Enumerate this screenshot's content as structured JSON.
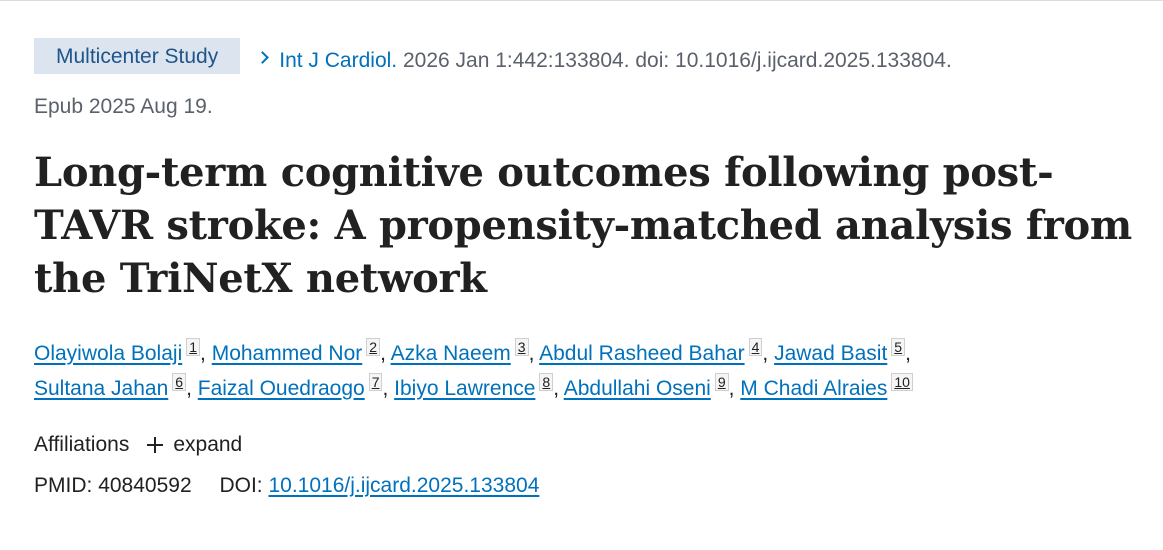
{
  "publication_type": "Multicenter Study",
  "citation": {
    "journal": "Int J Cardiol.",
    "details": "2026 Jan 1:442:133804. doi: 10.1016/j.ijcard.2025.133804.",
    "epub": "Epub 2025 Aug 19."
  },
  "title": "Long-term cognitive outcomes following post-TAVR stroke: A propensity-matched analysis from the TriNetX network",
  "authors": [
    {
      "name": "Olayiwola Bolaji",
      "aff": "1"
    },
    {
      "name": "Mohammed Nor",
      "aff": "2"
    },
    {
      "name": "Azka Naeem",
      "aff": "3"
    },
    {
      "name": "Abdul Rasheed Bahar",
      "aff": "4"
    },
    {
      "name": "Jawad Basit",
      "aff": "5"
    },
    {
      "name": "Sultana Jahan",
      "aff": "6"
    },
    {
      "name": "Faizal Ouedraogo",
      "aff": "7"
    },
    {
      "name": "Ibiyo Lawrence",
      "aff": "8"
    },
    {
      "name": "Abdullahi Oseni",
      "aff": "9"
    },
    {
      "name": "M Chadi Alraies",
      "aff": "10"
    }
  ],
  "affiliations": {
    "label": "Affiliations",
    "expand_label": "expand"
  },
  "identifiers": {
    "pmid_label": "PMID:",
    "pmid": "40840592",
    "doi_label": "DOI:",
    "doi": "10.1016/j.ijcard.2025.133804"
  }
}
